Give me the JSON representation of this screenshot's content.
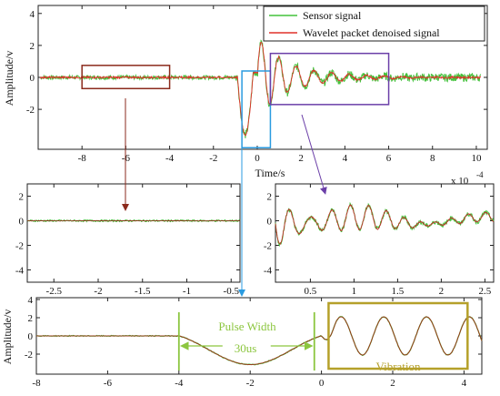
{
  "chart_data": [
    {
      "id": "main",
      "type": "line",
      "xlabel": "Time/s",
      "ylabel": "Amplitude/v",
      "xlim": [
        -10,
        10.5
      ],
      "ylim": [
        -4.5,
        4.5
      ],
      "xticks": [
        -8,
        -6,
        -4,
        -2,
        0,
        2,
        4,
        6,
        8,
        10
      ],
      "yticks": [
        -2,
        0,
        2,
        4
      ],
      "legend_position": "top-right",
      "series": [
        {
          "name": "Sensor signal",
          "color": "#44c23c"
        },
        {
          "name": "Wavelet packet denoised signal",
          "color": "#e0302a"
        }
      ],
      "annotations": [
        {
          "kind": "box",
          "color": "#8b2a1c",
          "x": [
            -8,
            -4
          ],
          "y": [
            -0.7,
            0.75
          ]
        },
        {
          "kind": "box",
          "color": "#2a9be0",
          "x": [
            -0.7,
            0.6
          ],
          "y": [
            -4.4,
            0.4
          ]
        },
        {
          "kind": "box",
          "color": "#6b3fa8",
          "x": [
            0.6,
            6
          ],
          "y": [
            -1.7,
            1.5
          ]
        }
      ]
    },
    {
      "id": "left_zoom",
      "type": "line",
      "xlim": [
        -2.8,
        -0.4
      ],
      "ylim": [
        -5,
        3
      ],
      "xticks": [
        -2.5,
        -2,
        -1.5,
        -1,
        -0.5
      ],
      "yticks": [
        -4,
        -2,
        0,
        2
      ],
      "series": [
        {
          "color": "#44c23c"
        },
        {
          "color": "#8b3a1a"
        }
      ]
    },
    {
      "id": "right_zoom",
      "type": "line",
      "exponent_label": "x 10",
      "exponent_power": "-4",
      "xlim": [
        0.1,
        2.6
      ],
      "ylim": [
        -5,
        3
      ],
      "xticks": [
        0.5,
        1,
        1.5,
        2,
        2.5
      ],
      "yticks": [
        -4,
        -2,
        0,
        2
      ],
      "series": [
        {
          "color": "#44c23c"
        },
        {
          "color": "#c0302a"
        }
      ]
    },
    {
      "id": "bottom",
      "type": "line",
      "ylabel": "Amplitude/v",
      "xlim": [
        -8,
        4.5
      ],
      "ylim": [
        -4.2,
        4.2
      ],
      "xticks": [
        -8,
        -6,
        -4,
        -2,
        0,
        2,
        4
      ],
      "yticks": [
        -2,
        0,
        2,
        4
      ],
      "series": [
        {
          "color": "#44c23c"
        },
        {
          "color": "#9b3a1c"
        }
      ],
      "annotations": [
        {
          "kind": "vline",
          "color": "#8cc63f",
          "x": -4
        },
        {
          "kind": "vline",
          "color": "#8cc63f",
          "x": -0.2
        },
        {
          "kind": "text",
          "color": "#8cc63f",
          "text": "Pulse Width"
        },
        {
          "kind": "text",
          "color": "#8cc63f",
          "text": "30us"
        },
        {
          "kind": "box",
          "color": "#b5a02a",
          "x": [
            0.2,
            4.1
          ],
          "label": "Vibration"
        }
      ]
    }
  ]
}
